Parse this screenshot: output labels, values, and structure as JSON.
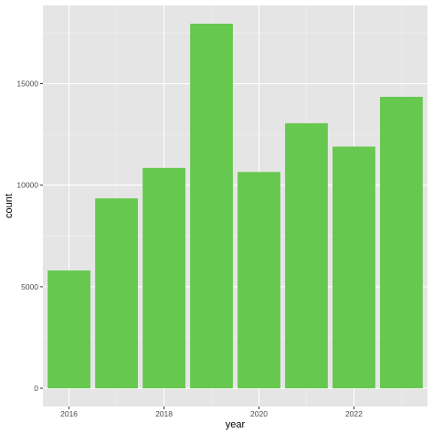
{
  "colors": {
    "panel_background": "#e5e5e5",
    "grid_major": "#ffffff",
    "grid_minor": "#f2f2f2",
    "bar_fill": "#66c84e",
    "tick": "#333333"
  },
  "chart_data": {
    "type": "bar",
    "title": "",
    "xlabel": "year",
    "ylabel": "count",
    "x": [
      2016,
      2017,
      2018,
      2019,
      2020,
      2021,
      2022,
      2023
    ],
    "values": [
      5800,
      9350,
      10850,
      17950,
      10650,
      13050,
      11900,
      14350
    ],
    "xlim": [
      2015.45,
      2023.55
    ],
    "ylim": [
      -897.5,
      18847.5
    ],
    "x_ticks": [
      2016,
      2018,
      2020,
      2022
    ],
    "x_tick_labels": [
      "2016",
      "2018",
      "2020",
      "2022"
    ],
    "y_ticks": [
      0,
      5000,
      10000,
      15000
    ],
    "y_tick_labels": [
      "0",
      "5000",
      "10000",
      "15000"
    ],
    "bar_width": 0.9,
    "grid": true,
    "legend": "none"
  }
}
